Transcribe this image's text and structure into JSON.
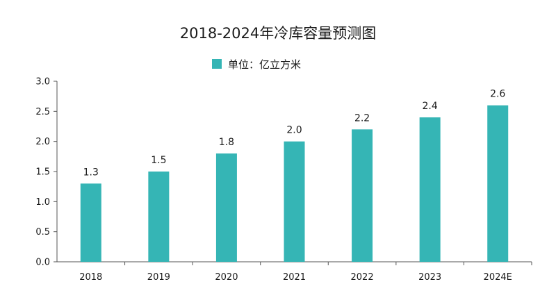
{
  "chart_data": {
    "type": "bar",
    "title": "2018-2024年冷库容量预测图",
    "legend": {
      "position": "top-center",
      "entries": [
        "单位：亿立方米"
      ]
    },
    "categories": [
      "2018",
      "2019",
      "2020",
      "2021",
      "2022",
      "2023",
      "2024E"
    ],
    "series": [
      {
        "name": "单位：亿立方米",
        "values": [
          1.3,
          1.5,
          1.8,
          2.0,
          2.2,
          2.4,
          2.6
        ],
        "labels": [
          "1.3",
          "1.5",
          "1.8",
          "2.0",
          "2.2",
          "2.4",
          "2.6"
        ],
        "color": "#35b5b5"
      }
    ],
    "xlabel": "",
    "ylabel": "",
    "ylim": [
      0,
      3.0
    ],
    "yticks": [
      "0.0",
      "0.5",
      "1.0",
      "1.5",
      "2.0",
      "2.5",
      "3.0"
    ],
    "grid": false
  }
}
